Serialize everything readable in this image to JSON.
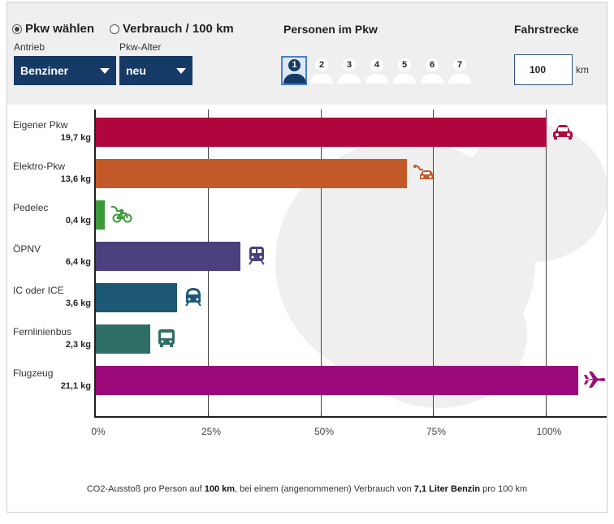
{
  "controls": {
    "mode_options": [
      {
        "label": "Pkw wählen",
        "selected": true
      },
      {
        "label": "Verbrauch / 100 km",
        "selected": false
      }
    ],
    "antrieb": {
      "label": "Antrieb",
      "value": "Benziner"
    },
    "pkw_alter": {
      "label": "Pkw-Alter",
      "value": "neu"
    },
    "persons": {
      "label": "Personen im Pkw",
      "options": [
        "1",
        "2",
        "3",
        "4",
        "5",
        "6",
        "7"
      ],
      "selected": "1"
    },
    "distance": {
      "label": "Fahrstrecke",
      "value": "100",
      "unit": "km"
    }
  },
  "chart_data": {
    "type": "bar",
    "orientation": "horizontal",
    "categories": [
      "Eigener Pkw",
      "Elektro-Pkw",
      "Pedelec",
      "ÖPNV",
      "IC oder ICE",
      "Fernlinienbus",
      "Flugzeug"
    ],
    "value_labels": [
      "19,7 kg",
      "13,6 kg",
      "0,4 kg",
      "6,4 kg",
      "3,6 kg",
      "2,3 kg",
      "21,1 kg"
    ],
    "values_kg": [
      19.7,
      13.6,
      0.4,
      6.4,
      3.6,
      2.3,
      21.1
    ],
    "values_percent": [
      100,
      69,
      2,
      32,
      18,
      12,
      107
    ],
    "colors": [
      "#b0063e",
      "#c45a2a",
      "#3c9a3a",
      "#4b3f7d",
      "#1c5873",
      "#2f6e66",
      "#9c0a7a"
    ],
    "icons": [
      "car-icon",
      "electric-car-icon",
      "pedelec-icon",
      "train-icon",
      "ice-train-icon",
      "bus-icon",
      "airplane-icon"
    ],
    "xticks": [
      "0%",
      "25%",
      "50%",
      "75%",
      "100%"
    ],
    "xlim": [
      0,
      110
    ],
    "grid": true
  },
  "footnote": {
    "part1": "CO2-Ausstoß pro Person auf ",
    "bold1": "100 km",
    "part2": ", bei einem (angenommenen) Verbrauch von ",
    "bold2": "7,1 Liter Benzin",
    "part3": " pro 100 km"
  }
}
